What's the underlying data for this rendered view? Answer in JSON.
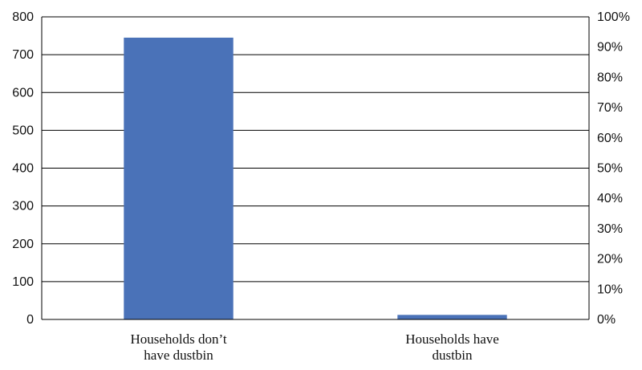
{
  "chart_data": {
    "type": "bar",
    "categories": [
      [
        "Households don’t",
        "have dustbin"
      ],
      [
        "Households have",
        "dustbin"
      ]
    ],
    "values": [
      745,
      12
    ],
    "ylim": [
      0,
      800
    ],
    "yticks": [
      0,
      100,
      200,
      300,
      400,
      500,
      600,
      700,
      800
    ],
    "y2ticks": [
      "0%",
      "10%",
      "20%",
      "30%",
      "40%",
      "50%",
      "60%",
      "70%",
      "80%",
      "90%",
      "100%"
    ],
    "grid": true,
    "bar_color": "#4a72b8",
    "grid_color": "#000000"
  }
}
